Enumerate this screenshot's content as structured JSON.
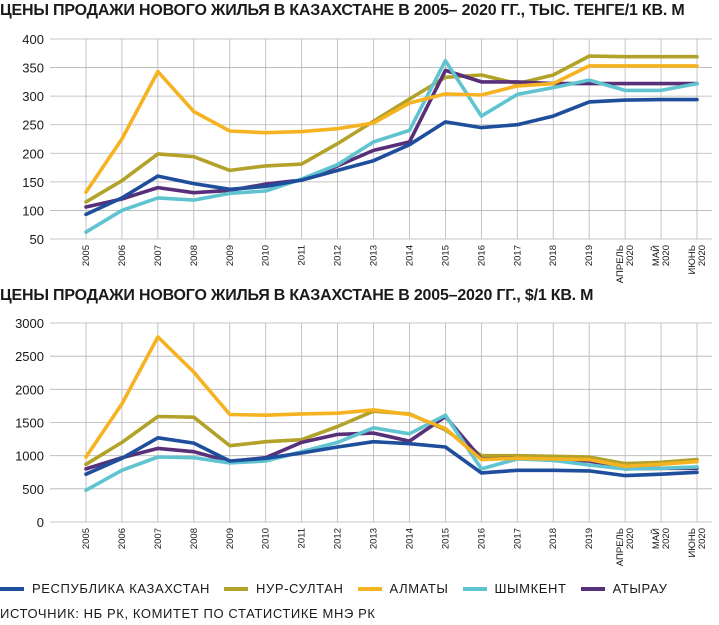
{
  "colors": {
    "Республика Казахстан": "#1f4e9c",
    "Нур-Султан": "#b3a22a",
    "Алматы": "#f6b321",
    "Шымкент": "#5fc4d0",
    "Атырау": "#58307a"
  },
  "legend_labels": [
    "РЕСПУБЛИКА КАЗАХСТАН",
    "НУР-СУЛТАН",
    "АЛМАТЫ",
    "ШЫМКЕНТ",
    "АТЫРАУ"
  ],
  "source": "ИСТОЧНИК: НБ РК, КОМИТЕТ ПО СТАТИСТИКЕ МНЭ РК",
  "chart_data": [
    {
      "type": "line",
      "title": "ЦЕНЫ ПРОДАЖИ НОВОГО ЖИЛЬЯ В КАЗАХСТАНЕ В 2005– 2020 ГГ., ТЫС. ТЕНГЕ/1 КВ. М",
      "categories": [
        "2005",
        "2006",
        "2007",
        "2008",
        "2009",
        "2010",
        "2011",
        "2012",
        "2013",
        "2014",
        "2015",
        "2016",
        "2017",
        "2018",
        "2019",
        "АПРЕЛЬ 2020",
        "МАЙ 2020",
        "ИЮНЬ 2020"
      ],
      "ylim": [
        50,
        400
      ],
      "yticks": [
        50,
        100,
        150,
        200,
        250,
        300,
        350,
        400
      ],
      "grid": true,
      "series": [
        {
          "name": "Республика Казахстан",
          "values": [
            93,
            122,
            160,
            147,
            137,
            142,
            153,
            170,
            187,
            215,
            255,
            245,
            250,
            265,
            290,
            293,
            294,
            294
          ]
        },
        {
          "name": "Нур-Султан",
          "values": [
            115,
            152,
            199,
            194,
            170,
            178,
            181,
            217,
            256,
            295,
            333,
            337,
            322,
            337,
            370,
            369,
            369,
            369
          ]
        },
        {
          "name": "Алматы",
          "values": [
            132,
            225,
            343,
            273,
            239,
            236,
            238,
            243,
            253,
            288,
            304,
            302,
            318,
            322,
            353,
            353,
            353,
            353
          ]
        },
        {
          "name": "Шымкент",
          "values": [
            62,
            100,
            122,
            118,
            130,
            134,
            155,
            180,
            220,
            240,
            362,
            265,
            303,
            315,
            328,
            310,
            310,
            322
          ]
        },
        {
          "name": "Атырау",
          "values": [
            106,
            120,
            140,
            131,
            135,
            146,
            153,
            178,
            205,
            220,
            345,
            325,
            325,
            322,
            322,
            322,
            322,
            322
          ]
        }
      ]
    },
    {
      "type": "line",
      "title": "ЦЕНЫ ПРОДАЖИ НОВОГО ЖИЛЬЯ В КАЗАХСТАНЕ В 2005–2020 ГГ., $/1 КВ. М",
      "categories": [
        "2005",
        "2006",
        "2007",
        "2008",
        "2009",
        "2010",
        "2011",
        "2012",
        "2013",
        "2014",
        "2015",
        "2016",
        "2017",
        "2018",
        "2019",
        "АПРЕЛЬ 2020",
        "МАЙ 2020",
        "ИЮНЬ 2020"
      ],
      "ylim": [
        0,
        3000
      ],
      "yticks": [
        0,
        500,
        1000,
        1500,
        2000,
        2500,
        3000
      ],
      "grid": true,
      "series": [
        {
          "name": "Республика Казахстан",
          "values": [
            720,
            960,
            1270,
            1190,
            920,
            960,
            1040,
            1130,
            1210,
            1180,
            1130,
            740,
            780,
            780,
            770,
            700,
            720,
            750
          ]
        },
        {
          "name": "Нур-Султан",
          "values": [
            870,
            1200,
            1590,
            1580,
            1150,
            1210,
            1240,
            1440,
            1670,
            1630,
            1390,
            1000,
            1000,
            990,
            980,
            880,
            900,
            940
          ]
        },
        {
          "name": "Алматы",
          "values": [
            980,
            1780,
            2790,
            2260,
            1620,
            1610,
            1630,
            1640,
            1690,
            1620,
            1410,
            940,
            960,
            950,
            940,
            840,
            870,
            910
          ]
        },
        {
          "name": "Шымкент",
          "values": [
            480,
            780,
            980,
            970,
            890,
            920,
            1060,
            1200,
            1420,
            1330,
            1610,
            800,
            950,
            930,
            860,
            800,
            810,
            830
          ]
        },
        {
          "name": "Атырау",
          "values": [
            800,
            970,
            1110,
            1060,
            910,
            970,
            1200,
            1320,
            1340,
            1220,
            1590,
            950,
            960,
            930,
            920,
            800,
            810,
            810
          ]
        }
      ]
    }
  ]
}
